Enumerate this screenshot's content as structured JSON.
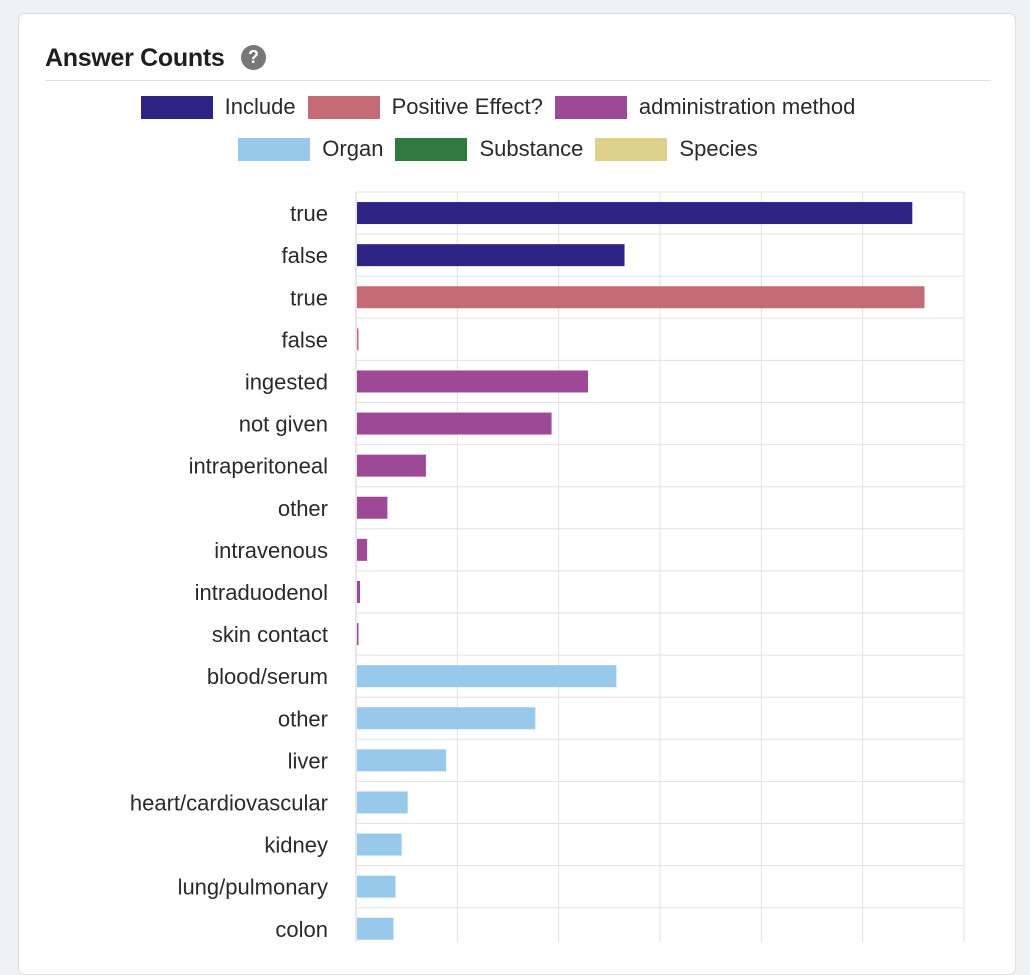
{
  "header": {
    "title": "Answer Counts",
    "help_icon": "question-circle-icon"
  },
  "chart_data": {
    "type": "bar",
    "orientation": "horizontal",
    "xlim": [
      0,
      6000
    ],
    "grid": true,
    "legend_placement": "top-center",
    "legend": [
      {
        "name": "Include",
        "color": "#2e2483"
      },
      {
        "name": "Positive Effect?",
        "color": "#c56b77"
      },
      {
        "name": "administration method",
        "color": "#9e4996"
      },
      {
        "name": "Organ",
        "color": "#98c9ea"
      },
      {
        "name": "Substance",
        "color": "#317a3f"
      },
      {
        "name": "Species",
        "color": "#ddd08a"
      }
    ],
    "bars": [
      {
        "category": "true",
        "value": 5480,
        "series": "Include"
      },
      {
        "category": "false",
        "value": 2640,
        "series": "Include"
      },
      {
        "category": "true",
        "value": 5600,
        "series": "Positive Effect?"
      },
      {
        "category": "false",
        "value": 15,
        "series": "Positive Effect?"
      },
      {
        "category": "ingested",
        "value": 2280,
        "series": "administration method"
      },
      {
        "category": "not given",
        "value": 1920,
        "series": "administration method"
      },
      {
        "category": "intraperitoneal",
        "value": 680,
        "series": "administration method"
      },
      {
        "category": "other",
        "value": 300,
        "series": "administration method"
      },
      {
        "category": "intravenous",
        "value": 100,
        "series": "administration method"
      },
      {
        "category": "intraduodenol",
        "value": 30,
        "series": "administration method"
      },
      {
        "category": "skin contact",
        "value": 15,
        "series": "administration method"
      },
      {
        "category": "blood/serum",
        "value": 2560,
        "series": "Organ"
      },
      {
        "category": "other",
        "value": 1760,
        "series": "Organ"
      },
      {
        "category": "liver",
        "value": 880,
        "series": "Organ"
      },
      {
        "category": "heart/cardiovascular",
        "value": 500,
        "series": "Organ"
      },
      {
        "category": "kidney",
        "value": 440,
        "series": "Organ"
      },
      {
        "category": "lung/pulmonary",
        "value": 380,
        "series": "Organ"
      },
      {
        "category": "colon",
        "value": 360,
        "series": "Organ"
      }
    ]
  }
}
